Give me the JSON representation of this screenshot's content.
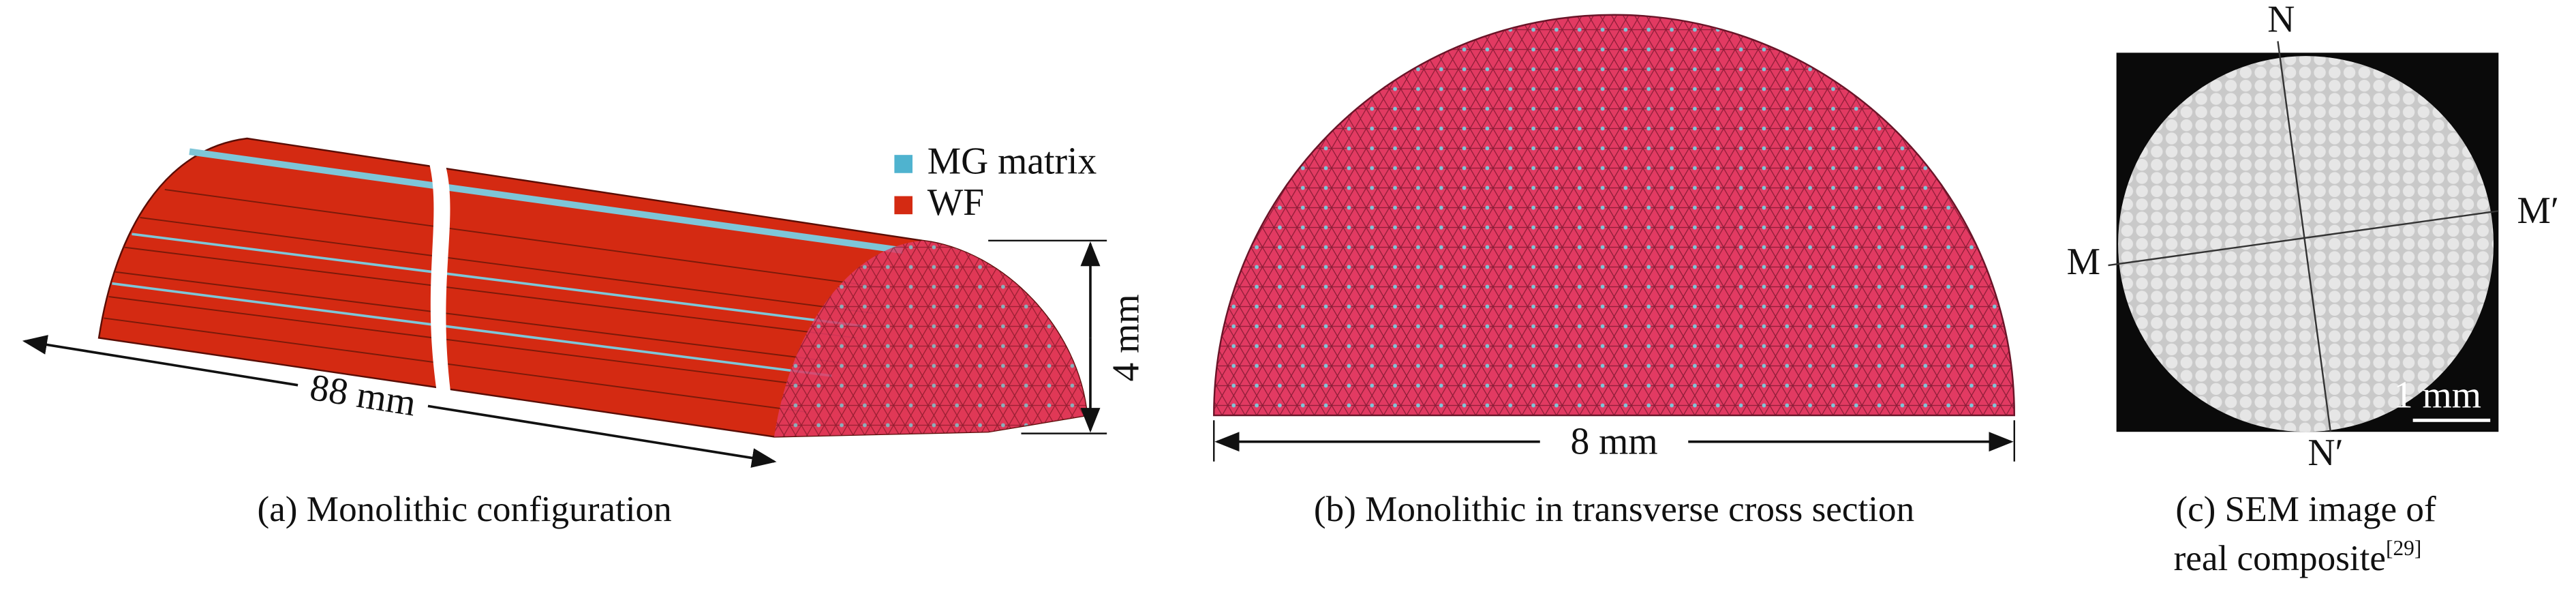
{
  "panels": [
    {
      "caption": "(a) Monolithic configuration",
      "legend": [
        "MG matrix",
        "WF"
      ],
      "length_label": "88 mm",
      "height_label": "4 mm"
    },
    {
      "caption": "(b) Monolithic in transverse cross section",
      "width_label": "8 mm"
    },
    {
      "caption_lines": [
        "(c) SEM image of",
        "real composite"
      ],
      "reference": "[29]",
      "labels": {
        "n": "N",
        "n_prime": "N′",
        "m": "M",
        "m_prime": "M′"
      },
      "scale_bar": "1 mm"
    }
  ]
}
